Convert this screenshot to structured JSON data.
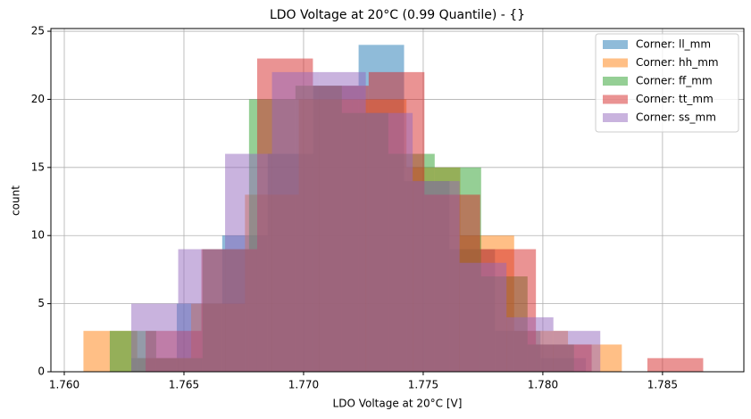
{
  "chart_data": {
    "type": "histogram",
    "title": "LDO Voltage at 20°C (0.99 Quantile) - {}",
    "xlabel": "LDO Voltage at 20°C [V]",
    "ylabel": "count",
    "xlim": [
      1.75944,
      1.7884
    ],
    "ylim": [
      0,
      25.2
    ],
    "xticks": [
      {
        "value": 1.76,
        "label": "1.760"
      },
      {
        "value": 1.765,
        "label": "1.765"
      },
      {
        "value": 1.77,
        "label": "1.770"
      },
      {
        "value": 1.775,
        "label": "1.775"
      },
      {
        "value": 1.78,
        "label": "1.780"
      },
      {
        "value": 1.785,
        "label": "1.785"
      }
    ],
    "yticks": [
      0,
      5,
      10,
      15,
      20,
      25
    ],
    "grid": true,
    "legend": "upper right",
    "opacity": 0.5,
    "series": [
      {
        "name": "Corner: ll_mm",
        "color": "#1f77b4",
        "bins": [
          1.7628,
          1.7647,
          1.7666,
          1.7685,
          1.7704,
          1.7723,
          1.7742,
          1.7761,
          1.778,
          1.7799,
          1.7818
        ],
        "values": [
          1,
          5,
          10,
          16,
          21,
          24,
          14,
          9,
          3,
          1
        ]
      },
      {
        "name": "Corner: hh_mm",
        "color": "#ff7f0e",
        "bins": [
          1.7608,
          1.76305,
          1.7653,
          1.76755,
          1.7698,
          1.77205,
          1.7743,
          1.77655,
          1.7788,
          1.78105,
          1.7833
        ],
        "values": [
          3,
          1,
          5,
          13,
          20,
          20,
          15,
          10,
          3,
          2
        ]
      },
      {
        "name": "Corner: ff_mm",
        "color": "#2ca02c",
        "bins": [
          1.7619,
          1.76384,
          1.76578,
          1.76772,
          1.76966,
          1.7716,
          1.77354,
          1.77548,
          1.77742,
          1.77936,
          1.7813
        ],
        "values": [
          3,
          1,
          9,
          20,
          21,
          19,
          16,
          15,
          7,
          2
        ]
      },
      {
        "name": "Corner: tt_mm",
        "color": "#d62728",
        "bins": [
          1.7634,
          1.76573,
          1.76806,
          1.77039,
          1.77272,
          1.77505,
          1.77738,
          1.77971,
          1.78204,
          1.78437,
          1.7867
        ],
        "values": [
          3,
          9,
          23,
          21,
          22,
          13,
          9,
          2,
          0,
          1
        ]
      },
      {
        "name": "Corner: ss_mm",
        "color": "#9467bd",
        "bins": [
          1.7628,
          1.76476,
          1.76672,
          1.76868,
          1.77064,
          1.7726,
          1.77456,
          1.77652,
          1.77848,
          1.78044,
          1.7824
        ],
        "values": [
          5,
          9,
          16,
          22,
          22,
          19,
          14,
          8,
          4,
          3
        ]
      }
    ]
  }
}
